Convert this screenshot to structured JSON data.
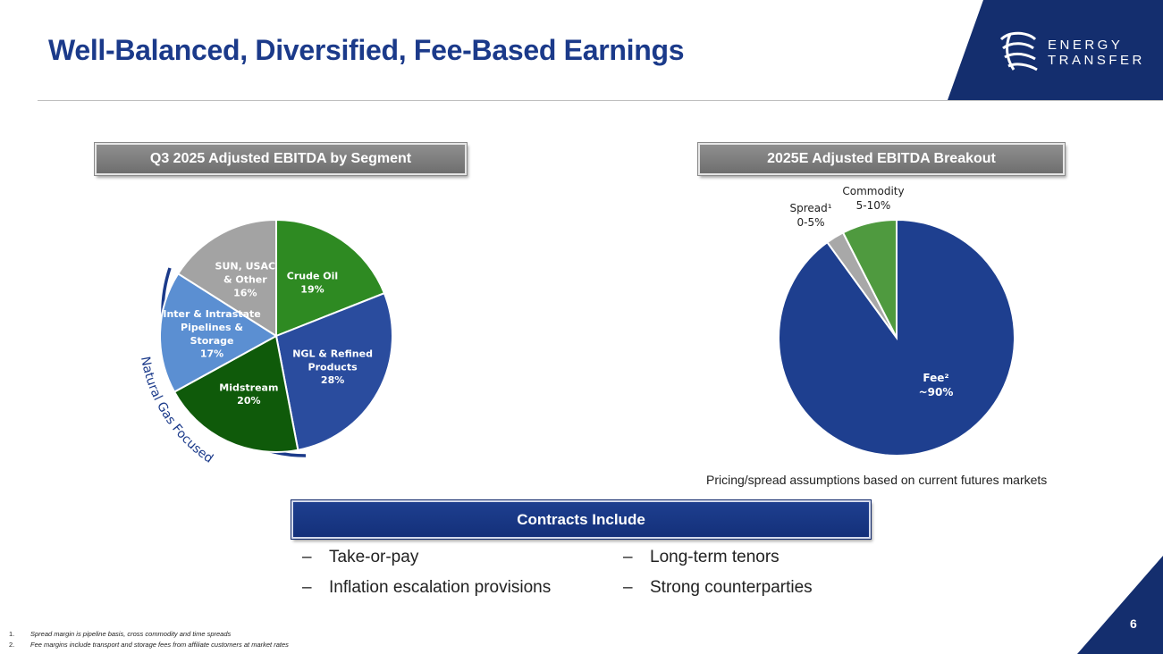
{
  "title": "Well-Balanced, Diversified, Fee-Based Earnings",
  "logo": {
    "line1": "ENERGY",
    "line2": "TRANSFER"
  },
  "left_header": "Q3 2025 Adjusted EBITDA by Segment",
  "right_header": "2025E Adjusted EBITDA Breakout",
  "natural_gas_label": "Natural Gas Focused",
  "assumption_note": "Pricing/spread assumptions based on current futures markets",
  "contracts": {
    "header": "Contracts Include",
    "items": [
      {
        "dash": "–",
        "text": "Take-or-pay"
      },
      {
        "dash": "–",
        "text": "Long-term tenors"
      },
      {
        "dash": "–",
        "text": "Inflation escalation provisions"
      },
      {
        "dash": "–",
        "text": "Strong counterparties"
      }
    ]
  },
  "footnotes": [
    {
      "num": "1.",
      "text": "Spread margin is pipeline basis, cross commodity and time spreads"
    },
    {
      "num": "2.",
      "text": "Fee margins include transport and storage fees from affiliate customers at market rates"
    }
  ],
  "page_number": "6",
  "colors": {
    "navy": "#1b3a8a",
    "green": "#2e7d1f",
    "dark_green": "#155e0c",
    "blue": "#2a4c9e",
    "light_blue": "#5c8fd0",
    "gray": "#a6a6a6"
  },
  "chart_data": [
    {
      "type": "pie",
      "title": "Q3 2025 Adjusted EBITDA by Segment",
      "slices": [
        {
          "lines": [
            "Crude Oil",
            "19%"
          ],
          "value": 19,
          "color": "#2e8a22"
        },
        {
          "lines": [
            "NGL & Refined",
            "Products",
            "28%"
          ],
          "value": 28,
          "color": "#2a4c9e"
        },
        {
          "lines": [
            "Midstream",
            "20%"
          ],
          "value": 20,
          "color": "#0f5a0a"
        },
        {
          "lines": [
            "Inter & Intrastate",
            "Pipelines &",
            "Storage",
            "17%"
          ],
          "value": 17,
          "color": "#5b8fd2"
        },
        {
          "lines": [
            "SUN, USAC",
            "& Other",
            "16%"
          ],
          "value": 16,
          "color": "#a3a3a3"
        }
      ]
    },
    {
      "type": "pie",
      "title": "2025E Adjusted EBITDA Breakout",
      "slices": [
        {
          "lines": [
            "Fee²",
            "~90%"
          ],
          "value": 90,
          "color": "#1e3f8f"
        },
        {
          "lines": [
            "Spread¹",
            "0-5%"
          ],
          "value": 2.5,
          "color": "#a8a8a8"
        },
        {
          "lines": [
            "Commodity",
            "5-10%"
          ],
          "value": 7.5,
          "color": "#4f9a3f"
        }
      ]
    }
  ]
}
